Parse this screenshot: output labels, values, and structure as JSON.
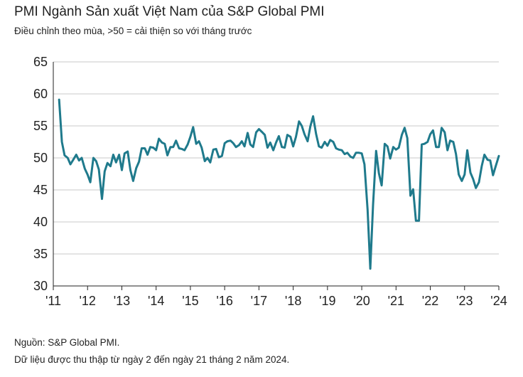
{
  "header": {
    "title": "PMI Ngành Sản xuất Việt Nam của S&P Global PMI",
    "subtitle": "Điều chỉnh theo mùa, >50 = cải thiện so với tháng trước"
  },
  "footer": {
    "source": "Nguồn: S&P Global PMI.",
    "note": "Dữ liệu được thu thập từ ngày 2 đến ngày 21 tháng 2 năm 2024."
  },
  "colors": {
    "line": "#1f7a8c",
    "grid": "#c8c8c8",
    "axis": "#222222"
  },
  "chart_data": {
    "type": "line",
    "title": "PMI Ngành Sản xuất Việt Nam của S&P Global PMI",
    "xlabel": "",
    "ylabel": "",
    "ylim": [
      30,
      65
    ],
    "yticks": [
      30,
      35,
      40,
      45,
      50,
      55,
      60,
      65
    ],
    "xlim": [
      2011.0,
      2024.0
    ],
    "xtick_values": [
      2011,
      2012,
      2013,
      2014,
      2015,
      2016,
      2017,
      2018,
      2019,
      2020,
      2021,
      2022,
      2023,
      2024
    ],
    "xtick_labels": [
      "'11",
      "'12",
      "'13",
      "'14",
      "'15",
      "'16",
      "'17",
      "'18",
      "'19",
      "'20",
      "'21",
      "'22",
      "'23",
      "'24"
    ],
    "grid": "horizontal",
    "series": [
      {
        "name": "",
        "x": [
          2011.17,
          2011.25,
          2011.33,
          2011.42,
          2011.5,
          2011.58,
          2011.67,
          2011.75,
          2011.83,
          2011.92,
          2012.0,
          2012.08,
          2012.17,
          2012.25,
          2012.33,
          2012.42,
          2012.5,
          2012.58,
          2012.67,
          2012.75,
          2012.83,
          2012.92,
          2013.0,
          2013.08,
          2013.17,
          2013.25,
          2013.33,
          2013.42,
          2013.5,
          2013.58,
          2013.67,
          2013.75,
          2013.83,
          2013.92,
          2014.0,
          2014.08,
          2014.17,
          2014.25,
          2014.33,
          2014.42,
          2014.5,
          2014.58,
          2014.67,
          2014.75,
          2014.83,
          2014.92,
          2015.0,
          2015.08,
          2015.17,
          2015.25,
          2015.33,
          2015.42,
          2015.5,
          2015.58,
          2015.67,
          2015.75,
          2015.83,
          2015.92,
          2016.0,
          2016.08,
          2016.17,
          2016.25,
          2016.33,
          2016.42,
          2016.5,
          2016.58,
          2016.67,
          2016.75,
          2016.83,
          2016.92,
          2017.0,
          2017.08,
          2017.17,
          2017.25,
          2017.33,
          2017.42,
          2017.5,
          2017.58,
          2017.67,
          2017.75,
          2017.83,
          2017.92,
          2018.0,
          2018.08,
          2018.17,
          2018.25,
          2018.33,
          2018.42,
          2018.5,
          2018.58,
          2018.67,
          2018.75,
          2018.83,
          2018.92,
          2019.0,
          2019.08,
          2019.17,
          2019.25,
          2019.33,
          2019.42,
          2019.5,
          2019.58,
          2019.67,
          2019.75,
          2019.83,
          2019.92,
          2020.0,
          2020.08,
          2020.17,
          2020.25,
          2020.33,
          2020.42,
          2020.5,
          2020.58,
          2020.67,
          2020.75,
          2020.83,
          2020.92,
          2021.0,
          2021.08,
          2021.17,
          2021.25,
          2021.33,
          2021.42,
          2021.5,
          2021.58,
          2021.67,
          2021.75,
          2021.83,
          2021.92,
          2022.0,
          2022.08,
          2022.17,
          2022.25,
          2022.33,
          2022.42,
          2022.5,
          2022.58,
          2022.67,
          2022.75,
          2022.83,
          2022.92,
          2023.0,
          2023.08,
          2023.17,
          2023.25,
          2023.33,
          2023.42,
          2023.5,
          2023.58,
          2023.67,
          2023.75,
          2023.83,
          2023.92,
          2024.0
        ],
        "values": [
          59.1,
          52.5,
          50.4,
          50.0,
          49.0,
          49.7,
          50.5,
          49.6,
          50.0,
          48.3,
          47.4,
          46.2,
          50.0,
          49.5,
          48.2,
          43.6,
          47.9,
          49.2,
          48.7,
          50.5,
          49.3,
          50.5,
          48.1,
          50.7,
          51.0,
          48.1,
          46.4,
          48.4,
          49.4,
          51.5,
          51.5,
          50.5,
          51.7,
          51.6,
          51.2,
          53.0,
          52.4,
          52.2,
          50.4,
          51.7,
          51.7,
          52.7,
          51.5,
          51.4,
          51.2,
          52.1,
          53.3,
          54.8,
          52.2,
          52.6,
          51.6,
          49.5,
          50.0,
          49.3,
          51.3,
          51.4,
          50.1,
          50.3,
          52.3,
          52.6,
          52.7,
          52.3,
          51.7,
          52.0,
          52.6,
          51.8,
          53.9,
          52.1,
          51.7,
          54.0,
          54.5,
          54.1,
          53.6,
          51.6,
          52.4,
          51.2,
          52.4,
          53.4,
          51.7,
          51.6,
          53.6,
          53.3,
          51.8,
          53.3,
          55.7,
          55.0,
          53.7,
          52.6,
          54.9,
          56.5,
          53.7,
          51.8,
          51.6,
          52.5,
          51.9,
          52.8,
          52.5,
          51.5,
          51.3,
          51.2,
          50.6,
          50.8,
          50.2,
          50.0,
          50.8,
          50.8,
          50.7,
          49.0,
          41.9,
          32.7,
          42.7,
          51.1,
          47.6,
          45.7,
          52.2,
          51.8,
          49.9,
          51.7,
          51.3,
          51.6,
          53.6,
          54.7,
          53.1,
          44.1,
          45.1,
          40.2,
          40.2,
          52.1,
          52.2,
          52.5,
          53.7,
          54.3,
          51.7,
          51.7,
          54.7,
          54.0,
          51.2,
          52.7,
          52.5,
          50.6,
          47.4,
          46.4,
          47.4,
          51.2,
          47.7,
          46.7,
          45.3,
          46.2,
          48.7,
          50.5,
          49.7,
          49.6,
          47.3,
          48.9,
          50.3
        ]
      }
    ]
  }
}
